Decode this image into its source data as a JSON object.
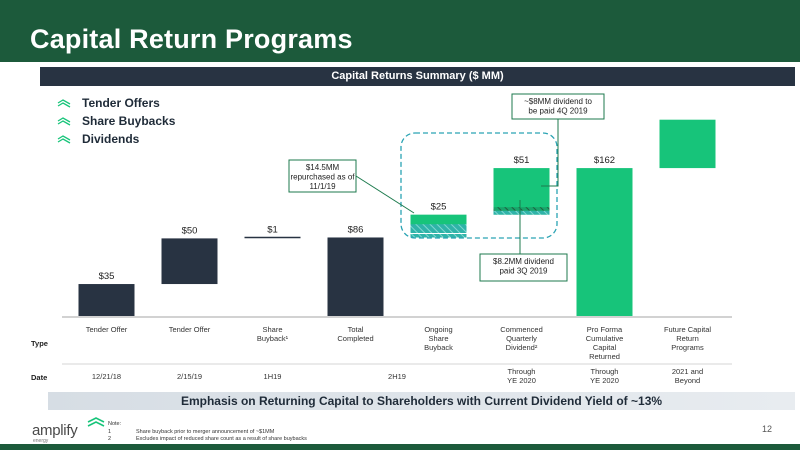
{
  "title": "Capital Return Programs",
  "subheader": "Capital Returns Summary ($ MM)",
  "legend": [
    {
      "label": "Tender Offers",
      "color": "#283342"
    },
    {
      "label": "Share Buybacks",
      "color": "#283342"
    },
    {
      "label": "Dividends",
      "color": "#17c47a"
    }
  ],
  "chart_data": {
    "type": "bar",
    "subtype": "waterfall",
    "categories": [
      "Tender Offer",
      "Tender Offer",
      "Share Buyback¹",
      "Total Completed",
      "Ongoing Share Buyback",
      "Commenced Quarterly Dividend²",
      "Pro Forma Cumulative Capital Returned",
      "Future Capital Return Programs"
    ],
    "bars": [
      {
        "base": 0,
        "top": 35,
        "label": "$35",
        "kind": "tender"
      },
      {
        "base": 35,
        "top": 85,
        "label": "$50",
        "kind": "tender"
      },
      {
        "base": 85,
        "top": 86,
        "label": "$1",
        "kind": "buyback"
      },
      {
        "base": 0,
        "top": 86,
        "label": "$86",
        "kind": "total"
      },
      {
        "base": 86,
        "top": 111,
        "label": "$25",
        "kind": "ongoing",
        "hatched_value": 14.5
      },
      {
        "base": 111,
        "top": 162,
        "label": "$51",
        "kind": "dividend",
        "hatched_value": 8.2
      },
      {
        "base": 0,
        "top": 162,
        "label": "$162",
        "kind": "proforma"
      },
      {
        "base": 162,
        "top": 215,
        "label": "",
        "kind": "future"
      }
    ],
    "ylim": [
      0,
      230
    ],
    "type_row_label": "Type",
    "date_row_label": "Date",
    "dates": [
      "12/21/18",
      "2/15/19",
      "1H19",
      "2H19",
      "Through YE 2020",
      "Through YE 2020",
      "2021 and Beyond"
    ],
    "annotations": [
      {
        "text": "$14.5MM repurchased as of 11/1/19"
      },
      {
        "text": "~$8MM dividend to be paid 4Q 2019"
      },
      {
        "text": "$8.2MM dividend paid 3Q 2019"
      }
    ]
  },
  "banner": "Emphasis on Returning Capital to Shareholders with Current Dividend Yield of ~13%",
  "logo": {
    "name": "amplify",
    "sub": "energy"
  },
  "notes": {
    "heading": "Note:",
    "items": [
      {
        "num": "1",
        "text": "Share buyback prior to merger announcement of ~$1MM"
      },
      {
        "num": "2",
        "text": "Excludes impact of reduced share count as a result of share buybacks"
      }
    ]
  },
  "page_number": "12",
  "colors": {
    "dark": "#283342",
    "green": "#17c47a",
    "hatch_green": "#0e8a56",
    "header": "#1c5a3b"
  }
}
